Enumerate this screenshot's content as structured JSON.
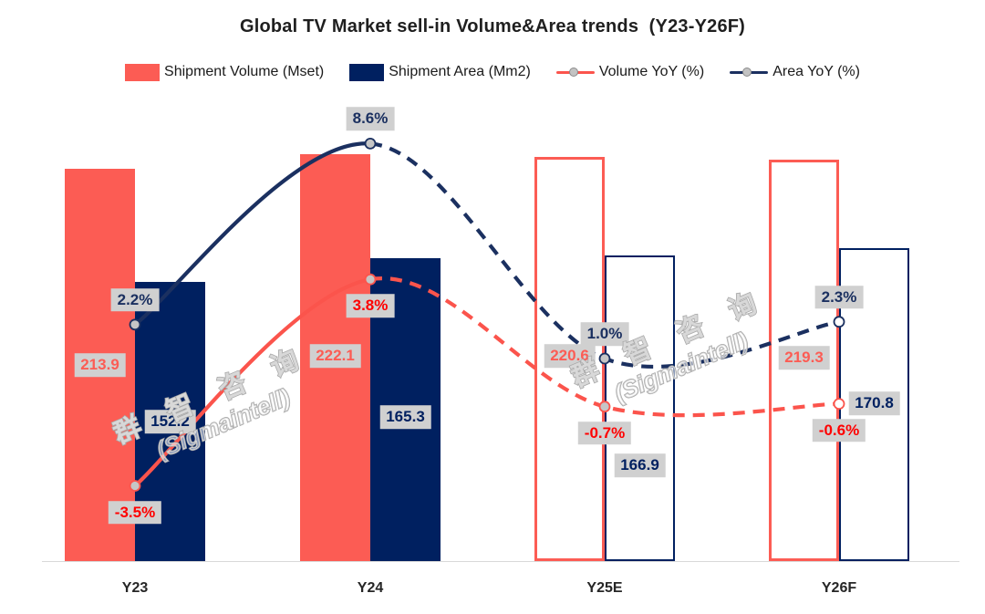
{
  "title": "Global TV Market sell-in Volume&Area trends  (Y23-Y26F)",
  "legend": {
    "position": "top",
    "items": [
      {
        "label": "Shipment Volume (Mset)",
        "type": "bar",
        "color": "#FC5C54"
      },
      {
        "label": "Shipment Area (Mm2)",
        "type": "bar",
        "color": "#002060"
      },
      {
        "label": "Volume YoY (%)",
        "type": "line",
        "color": "#FB544C"
      },
      {
        "label": "Area YoY (%)",
        "type": "line",
        "color": "#1B3060"
      }
    ]
  },
  "watermark": {
    "line1": "群 智 咨 询",
    "line2": "(Sigmaintell)"
  },
  "colors": {
    "salmon": "#FC5C54",
    "navy": "#002060",
    "navyline": "#1B3060",
    "red": "#FF0000",
    "graybox": "#D0D0D0",
    "marker_fill_actual": "#C6C6C6",
    "marker_fill_forecast": "#FFFFFF"
  },
  "chart_data": {
    "type": "bar+line combo",
    "title": "Global TV Market sell-in Volume&Area trends (Y23-Y26F)",
    "categories": [
      "Y23",
      "Y24",
      "Y25E",
      "Y26F"
    ],
    "bar_series": [
      {
        "name": "Shipment Volume (Mset)",
        "color": "#FC5C54",
        "values": [
          213.9,
          222.1,
          220.6,
          219.3
        ],
        "labels": [
          "213.9",
          "222.1",
          "220.6",
          "219.3"
        ],
        "fill_style": [
          "solid",
          "solid",
          "outline",
          "outline"
        ]
      },
      {
        "name": "Shipment Area (Mm2)",
        "color": "#002060",
        "values": [
          152.2,
          165.3,
          166.9,
          170.8
        ],
        "labels": [
          "152.2",
          "165.3",
          "166.9",
          "170.8"
        ],
        "fill_style": [
          "solid",
          "solid",
          "outline",
          "outline"
        ]
      }
    ],
    "line_series": [
      {
        "name": "Volume YoY (%)",
        "color": "#FB544C",
        "values": [
          -3.5,
          3.8,
          -0.7,
          -0.6
        ],
        "labels": [
          "-3.5%",
          "3.8%",
          "-0.7%",
          "-0.6%"
        ],
        "label_placement": "below-marker",
        "line_style": "solid Y23-Y24, dashed Y24-Y26F"
      },
      {
        "name": "Area YoY (%)",
        "color": "#1B3060",
        "values": [
          2.2,
          8.6,
          1.0,
          2.3
        ],
        "labels": [
          "2.2%",
          "8.6%",
          "1.0%",
          "2.3%"
        ],
        "label_placement": "above-marker",
        "line_style": "solid Y23-Y24, dashed Y24-Y26F"
      }
    ],
    "legend_entries": [
      "Shipment Volume (Mset)",
      "Shipment Area (Mm2)",
      "Volume YoY (%)",
      "Area YoY (%)"
    ],
    "y_axis_visible": false,
    "secondary_y_axis_visible": false,
    "grid": false,
    "legend_position": "top",
    "notes": "Y25E and Y26F bars are hollow (forecast); lines dashed in forecast period; markers gray-filled for Y23-Y25E, hollow for Y26F"
  }
}
